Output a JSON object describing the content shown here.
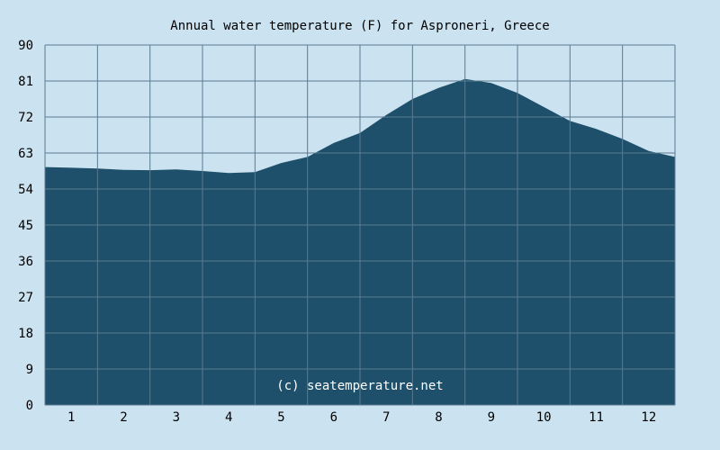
{
  "chart_data": {
    "type": "area",
    "title": "Annual water temperature (F) for Asproneri, Greece",
    "xlabel": "",
    "ylabel": "",
    "categories": [
      "1",
      "2",
      "3",
      "4",
      "5",
      "6",
      "7",
      "8",
      "9",
      "10",
      "11",
      "12"
    ],
    "ylim": [
      0,
      90
    ],
    "yticks": [
      0,
      9,
      18,
      27,
      36,
      45,
      54,
      63,
      72,
      81,
      90
    ],
    "grid": true,
    "legend": "none",
    "series": [
      {
        "x": [
          0,
          0.5,
          1.0,
          1.5,
          2.0,
          2.5,
          3.0,
          3.5,
          4.0,
          4.5,
          5.0,
          5.5,
          6.0,
          6.5,
          7.0,
          7.5,
          8.0,
          8.5,
          9.0,
          9.5,
          10.0,
          10.5,
          11.0,
          11.5,
          12.0
        ],
        "values": [
          59.5,
          59.3,
          59.1,
          58.8,
          58.7,
          58.9,
          58.5,
          58.0,
          58.2,
          60.5,
          62.0,
          65.5,
          68.0,
          72.5,
          76.5,
          79.3,
          81.5,
          80.5,
          78.0,
          74.5,
          71.0,
          69.0,
          66.5,
          63.5,
          62.0
        ]
      }
    ]
  },
  "watermark": "(c) seatemperature.net",
  "colors": {
    "background": "#cbe2f0",
    "area_fill": "#1e4f6b",
    "grid": "#5a7b90"
  }
}
